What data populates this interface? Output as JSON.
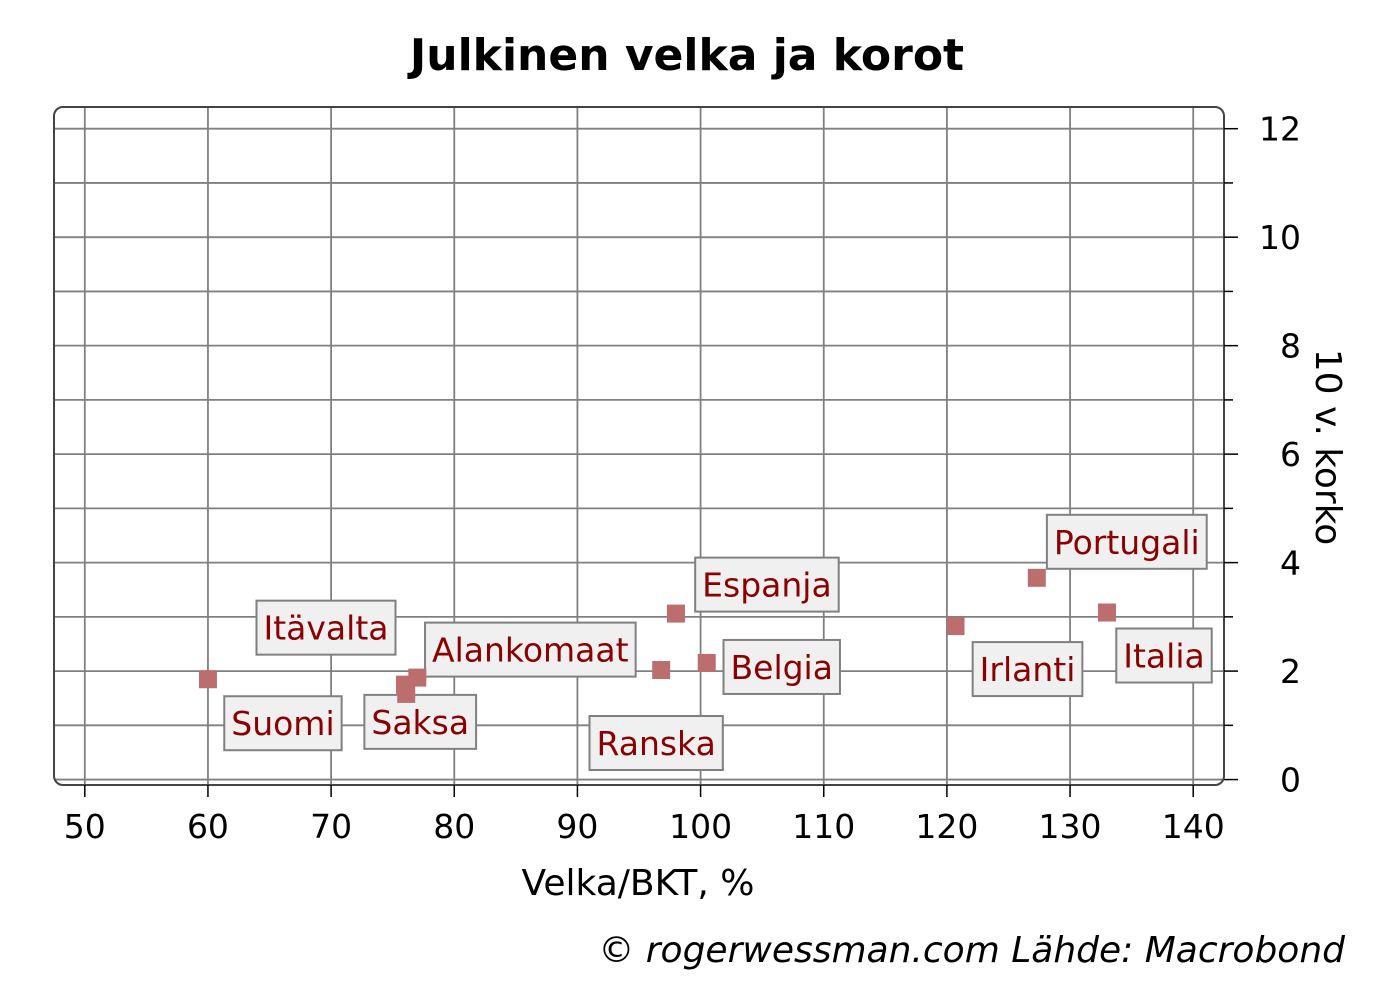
{
  "chart_data": {
    "type": "scatter",
    "title": "Julkinen velka ja korot",
    "xlabel": "Velka/BKT, %",
    "ylabel": "10 v. korko",
    "xlim": [
      47.5,
      142.5
    ],
    "ylim": [
      -0.1,
      12.4
    ],
    "xticks": [
      50,
      60,
      70,
      80,
      90,
      100,
      110,
      120,
      130,
      140
    ],
    "yticks": [
      0,
      2,
      4,
      6,
      8,
      10,
      12
    ],
    "y_minor_step": 1,
    "y_axis_position": "right",
    "grid": true,
    "marker": "square",
    "colors": {
      "marker": "#bc6e6e",
      "label_text": "#8b0000",
      "label_box_fill": "#f0f0f0",
      "label_box_border": "#808080",
      "grid": "#808080"
    },
    "points": [
      {
        "name": "Suomi",
        "x": 60.0,
        "y": 1.85
      },
      {
        "name": "Itävalta",
        "x": 76.0,
        "y": 1.75
      },
      {
        "name": "Saksa",
        "x": 76.1,
        "y": 1.58
      },
      {
        "name": "Alankomaat",
        "x": 77.0,
        "y": 1.88
      },
      {
        "name": "Ranska",
        "x": 96.8,
        "y": 2.02
      },
      {
        "name": "Espanja",
        "x": 98.0,
        "y": 3.06
      },
      {
        "name": "Belgia",
        "x": 100.5,
        "y": 2.15
      },
      {
        "name": "Irlanti",
        "x": 120.7,
        "y": 2.83
      },
      {
        "name": "Portugali",
        "x": 127.3,
        "y": 3.72
      },
      {
        "name": "Italia",
        "x": 133.0,
        "y": 3.08
      }
    ]
  },
  "source": "© rogerwessman.com Lähde: Macrobond"
}
